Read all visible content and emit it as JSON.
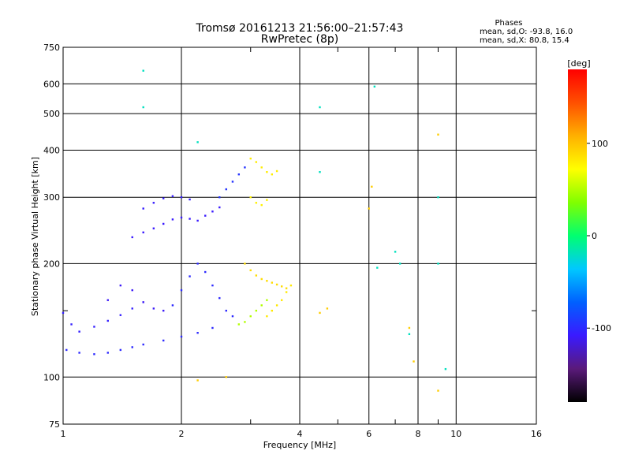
{
  "chart_data": {
    "type": "scatter",
    "title": "Tromsø 20161213 21:56:00–21:57:43",
    "subtitle": "RwPretec (8p)",
    "stats": {
      "heading": "Phases",
      "line1": "mean, sd,O: -93.8, 16.0",
      "line2": "mean, sd,X:  80.8, 15.4"
    },
    "xlabel": "Frequency [MHz]",
    "ylabel": "Stationary phase Virtual Height [km]",
    "x_scale": "log",
    "y_scale": "log",
    "xlim": [
      1,
      16
    ],
    "ylim": [
      75,
      750
    ],
    "x_ticks": [
      1,
      2,
      4,
      6,
      8,
      10,
      16
    ],
    "x_minor_ticks": [
      3,
      5,
      7,
      9
    ],
    "y_ticks": [
      75,
      100,
      200,
      300,
      400,
      500,
      600,
      750
    ],
    "y_minor_ticks": [
      150
    ],
    "grid": true,
    "colorbar": {
      "label": "[deg]",
      "min": -180,
      "max": 180,
      "ticks": [
        100,
        0,
        -100
      ],
      "colors": [
        "#000000",
        "#5a1a7a",
        "#3a1aff",
        "#0060ff",
        "#00c8ff",
        "#00ff70",
        "#80ff00",
        "#ffff00",
        "#ffb000",
        "#ff5000",
        "#ff0000"
      ]
    },
    "series": [
      {
        "values": [
          [
            1.02,
            118
          ],
          [
            1.1,
            116
          ],
          [
            1.2,
            115
          ],
          [
            1.3,
            116
          ],
          [
            1.4,
            118
          ],
          [
            1.5,
            120
          ],
          [
            1.6,
            122
          ],
          [
            1.8,
            125
          ],
          [
            2.0,
            128
          ],
          [
            2.2,
            131
          ],
          [
            2.4,
            135
          ]
        ],
        "phase": -100
      },
      {
        "values": [
          [
            1.0,
            148
          ],
          [
            1.05,
            138
          ],
          [
            1.1,
            132
          ],
          [
            1.2,
            136
          ],
          [
            1.3,
            141
          ],
          [
            1.4,
            146
          ],
          [
            1.5,
            152
          ]
        ],
        "phase": -105
      },
      {
        "values": [
          [
            1.3,
            160
          ],
          [
            1.4,
            175
          ],
          [
            1.5,
            170
          ],
          [
            1.6,
            158
          ],
          [
            1.7,
            152
          ],
          [
            1.8,
            150
          ]
        ],
        "phase": -110
      },
      {
        "values": [
          [
            1.5,
            235
          ],
          [
            1.6,
            242
          ],
          [
            1.7,
            248
          ],
          [
            1.8,
            255
          ],
          [
            1.9,
            262
          ],
          [
            2.0,
            265
          ],
          [
            2.1,
            263
          ],
          [
            2.2,
            260
          ],
          [
            2.3,
            268
          ],
          [
            2.4,
            275
          ],
          [
            2.5,
            282
          ]
        ],
        "phase": -108
      },
      {
        "values": [
          [
            1.6,
            280
          ],
          [
            1.7,
            290
          ],
          [
            1.8,
            298
          ],
          [
            1.9,
            302
          ],
          [
            2.0,
            300
          ],
          [
            2.1,
            296
          ]
        ],
        "phase": -106
      },
      {
        "values": [
          [
            1.9,
            155
          ],
          [
            2.0,
            170
          ],
          [
            2.1,
            185
          ],
          [
            2.2,
            200
          ],
          [
            2.3,
            190
          ],
          [
            2.4,
            175
          ],
          [
            2.5,
            162
          ],
          [
            2.6,
            150
          ],
          [
            2.7,
            145
          ]
        ],
        "phase": -100
      },
      {
        "values": [
          [
            2.5,
            300
          ],
          [
            2.6,
            315
          ],
          [
            2.7,
            330
          ],
          [
            2.8,
            345
          ],
          [
            2.9,
            360
          ]
        ],
        "phase": -95
      },
      {
        "values": [
          [
            2.8,
            138
          ],
          [
            2.9,
            140
          ],
          [
            3.0,
            145
          ],
          [
            3.1,
            150
          ],
          [
            3.2,
            155
          ],
          [
            3.3,
            160
          ]
        ],
        "phase": 50
      },
      {
        "values": [
          [
            2.9,
            200
          ],
          [
            3.0,
            192
          ],
          [
            3.1,
            186
          ],
          [
            3.2,
            182
          ],
          [
            3.3,
            180
          ],
          [
            3.4,
            178
          ],
          [
            3.5,
            176
          ],
          [
            3.6,
            174
          ],
          [
            3.7,
            172
          ]
        ],
        "phase": 88
      },
      {
        "values": [
          [
            3.0,
            380
          ],
          [
            3.1,
            372
          ],
          [
            3.2,
            360
          ],
          [
            3.3,
            350
          ],
          [
            3.4,
            345
          ],
          [
            3.5,
            352
          ]
        ],
        "phase": 80
      },
      {
        "values": [
          [
            3.0,
            300
          ],
          [
            3.1,
            290
          ],
          [
            3.2,
            286
          ],
          [
            3.3,
            295
          ]
        ],
        "phase": 78
      },
      {
        "values": [
          [
            3.3,
            145
          ],
          [
            3.4,
            150
          ],
          [
            3.5,
            155
          ],
          [
            3.6,
            160
          ],
          [
            3.7,
            168
          ],
          [
            3.8,
            175
          ]
        ],
        "phase": 82
      },
      {
        "values": [
          [
            1.6,
            650
          ],
          [
            1.6,
            520
          ],
          [
            2.2,
            420
          ],
          [
            4.5,
            350
          ],
          [
            4.5,
            520
          ],
          [
            6.2,
            590
          ],
          [
            6.3,
            195
          ],
          [
            7.0,
            215
          ],
          [
            7.2,
            200
          ],
          [
            7.6,
            130
          ],
          [
            9.0,
            300
          ],
          [
            9.0,
            200
          ],
          [
            9.4,
            105
          ]
        ],
        "phase": -20
      },
      {
        "values": [
          [
            4.5,
            148
          ],
          [
            4.7,
            152
          ],
          [
            6.0,
            280
          ],
          [
            6.1,
            320
          ],
          [
            7.6,
            135
          ],
          [
            7.8,
            110
          ],
          [
            9.0,
            440
          ],
          [
            9.0,
            92
          ],
          [
            2.2,
            98
          ],
          [
            2.6,
            100
          ]
        ],
        "phase": 95
      }
    ]
  }
}
